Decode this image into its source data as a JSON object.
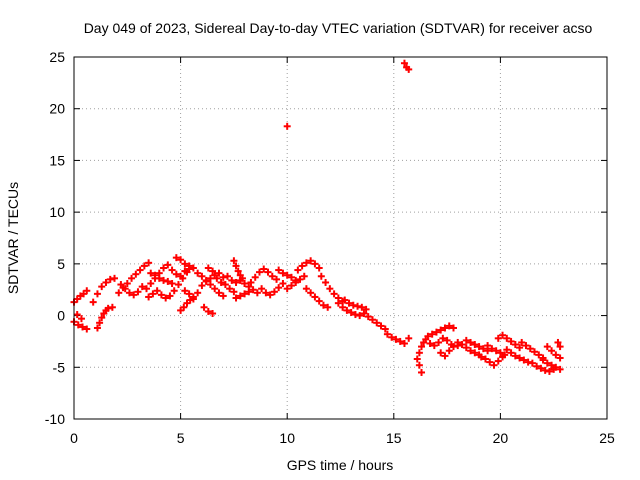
{
  "chart_data": {
    "type": "scatter",
    "title": "Day 049 of 2023, Sidereal Day-to-day VTEC variation (SDTVAR) for receiver acso",
    "xlabel": "GPS time / hours",
    "ylabel": "SDTVAR / TECUs",
    "xlim": [
      0,
      25
    ],
    "ylim": [
      -10,
      25
    ],
    "xticks": [
      0,
      5,
      10,
      15,
      20,
      25
    ],
    "yticks": [
      -10,
      -5,
      0,
      5,
      10,
      15,
      20,
      25
    ],
    "xtick_labels": [
      "0",
      "5",
      "10",
      "15",
      "20",
      "25"
    ],
    "ytick_labels": [
      "-10",
      "-5",
      "0",
      "5",
      "10",
      "15",
      "20",
      "25"
    ],
    "grid": true,
    "marker": "+",
    "color": "#ff0000",
    "series": [
      {
        "name": "SDTVAR",
        "points": [
          [
            0.0,
            1.3
          ],
          [
            0.15,
            1.6
          ],
          [
            0.3,
            1.9
          ],
          [
            0.45,
            2.1
          ],
          [
            0.6,
            2.4
          ],
          [
            0.0,
            -0.6
          ],
          [
            0.2,
            -0.9
          ],
          [
            0.4,
            -1.1
          ],
          [
            0.6,
            -1.3
          ],
          [
            0.15,
            0.1
          ],
          [
            0.35,
            -0.3
          ],
          [
            1.1,
            -1.2
          ],
          [
            1.2,
            -0.7
          ],
          [
            1.3,
            -0.2
          ],
          [
            1.4,
            0.2
          ],
          [
            1.5,
            0.5
          ],
          [
            1.6,
            0.7
          ],
          [
            1.8,
            0.8
          ],
          [
            0.9,
            1.3
          ],
          [
            1.1,
            2.1
          ],
          [
            1.3,
            2.8
          ],
          [
            1.5,
            3.2
          ],
          [
            1.7,
            3.5
          ],
          [
            1.9,
            3.6
          ],
          [
            2.1,
            2.2
          ],
          [
            2.3,
            2.7
          ],
          [
            2.5,
            3.1
          ],
          [
            2.7,
            3.6
          ],
          [
            2.9,
            4.0
          ],
          [
            3.1,
            4.4
          ],
          [
            3.3,
            4.8
          ],
          [
            3.5,
            5.1
          ],
          [
            2.2,
            3.0
          ],
          [
            2.4,
            2.6
          ],
          [
            2.6,
            2.2
          ],
          [
            2.8,
            2.0
          ],
          [
            3.0,
            2.3
          ],
          [
            3.2,
            2.8
          ],
          [
            3.4,
            2.6
          ],
          [
            3.6,
            3.1
          ],
          [
            3.8,
            3.6
          ],
          [
            4.0,
            4.1
          ],
          [
            4.2,
            4.6
          ],
          [
            4.4,
            4.9
          ],
          [
            3.6,
            4.1
          ],
          [
            3.8,
            3.9
          ],
          [
            4.0,
            3.6
          ],
          [
            4.2,
            3.4
          ],
          [
            4.4,
            3.3
          ],
          [
            4.6,
            3.1
          ],
          [
            3.5,
            1.8
          ],
          [
            3.7,
            2.1
          ],
          [
            3.9,
            2.4
          ],
          [
            4.1,
            2.0
          ],
          [
            4.3,
            1.7
          ],
          [
            4.5,
            1.9
          ],
          [
            4.7,
            2.4
          ],
          [
            4.9,
            3.0
          ],
          [
            5.1,
            3.6
          ],
          [
            5.3,
            4.2
          ],
          [
            4.8,
            5.6
          ],
          [
            5.0,
            5.4
          ],
          [
            5.2,
            5.0
          ],
          [
            5.4,
            4.5
          ],
          [
            4.6,
            4.4
          ],
          [
            4.8,
            4.0
          ],
          [
            5.0,
            3.8
          ],
          [
            5.2,
            4.3
          ],
          [
            5.4,
            4.8
          ],
          [
            5.6,
            4.6
          ],
          [
            5.2,
            2.4
          ],
          [
            5.4,
            2.1
          ],
          [
            5.6,
            1.8
          ],
          [
            5.8,
            2.2
          ],
          [
            5.0,
            0.5
          ],
          [
            5.15,
            0.8
          ],
          [
            5.3,
            1.2
          ],
          [
            5.45,
            1.5
          ],
          [
            5.6,
            1.6
          ],
          [
            6.1,
            0.8
          ],
          [
            6.3,
            0.4
          ],
          [
            6.5,
            0.2
          ],
          [
            5.8,
            4.1
          ],
          [
            6.0,
            3.8
          ],
          [
            6.2,
            3.4
          ],
          [
            6.4,
            3.0
          ],
          [
            6.6,
            2.6
          ],
          [
            6.8,
            2.2
          ],
          [
            7.0,
            1.9
          ],
          [
            6.0,
            2.9
          ],
          [
            6.2,
            3.3
          ],
          [
            6.4,
            3.6
          ],
          [
            6.6,
            3.9
          ],
          [
            6.8,
            4.1
          ],
          [
            7.0,
            3.7
          ],
          [
            6.3,
            4.6
          ],
          [
            6.5,
            4.3
          ],
          [
            6.7,
            3.6
          ],
          [
            6.9,
            3.2
          ],
          [
            7.1,
            3.0
          ],
          [
            7.3,
            2.6
          ],
          [
            7.5,
            2.3
          ],
          [
            7.2,
            3.8
          ],
          [
            7.4,
            3.4
          ],
          [
            7.6,
            3.2
          ],
          [
            7.8,
            3.4
          ],
          [
            8.0,
            3.1
          ],
          [
            8.2,
            2.8
          ],
          [
            7.5,
            5.3
          ],
          [
            7.6,
            4.8
          ],
          [
            7.7,
            4.3
          ],
          [
            7.8,
            3.9
          ],
          [
            7.9,
            3.6
          ],
          [
            7.6,
            1.7
          ],
          [
            7.8,
            1.9
          ],
          [
            8.0,
            2.1
          ],
          [
            8.2,
            2.3
          ],
          [
            8.4,
            2.5
          ],
          [
            8.6,
            2.2
          ],
          [
            8.3,
            3.2
          ],
          [
            8.5,
            3.7
          ],
          [
            8.7,
            4.2
          ],
          [
            8.9,
            4.5
          ],
          [
            9.1,
            4.2
          ],
          [
            9.3,
            3.8
          ],
          [
            9.5,
            3.5
          ],
          [
            8.8,
            2.6
          ],
          [
            9.0,
            2.2
          ],
          [
            9.2,
            2.0
          ],
          [
            9.4,
            2.3
          ],
          [
            9.6,
            2.7
          ],
          [
            9.8,
            3.1
          ],
          [
            9.6,
            4.4
          ],
          [
            9.8,
            4.1
          ],
          [
            10.0,
            3.9
          ],
          [
            10.2,
            3.7
          ],
          [
            10.4,
            3.4
          ],
          [
            10.0,
            2.6
          ],
          [
            10.2,
            2.9
          ],
          [
            10.4,
            3.2
          ],
          [
            10.6,
            3.5
          ],
          [
            10.8,
            3.8
          ],
          [
            10.5,
            4.4
          ],
          [
            10.7,
            4.8
          ],
          [
            10.9,
            5.1
          ],
          [
            11.1,
            5.3
          ],
          [
            11.3,
            5.0
          ],
          [
            11.5,
            4.6
          ],
          [
            10.9,
            2.6
          ],
          [
            11.1,
            2.2
          ],
          [
            11.3,
            1.8
          ],
          [
            11.5,
            1.4
          ],
          [
            11.7,
            1.0
          ],
          [
            11.9,
            0.8
          ],
          [
            11.6,
            3.8
          ],
          [
            11.8,
            3.2
          ],
          [
            12.0,
            2.6
          ],
          [
            12.2,
            2.1
          ],
          [
            12.4,
            1.7
          ],
          [
            12.6,
            1.4
          ],
          [
            12.4,
            1.2
          ],
          [
            12.6,
            0.8
          ],
          [
            12.8,
            0.5
          ],
          [
            13.0,
            0.3
          ],
          [
            13.2,
            0.1
          ],
          [
            13.4,
            0.0
          ],
          [
            12.7,
            1.5
          ],
          [
            12.9,
            1.2
          ],
          [
            13.1,
            1.0
          ],
          [
            13.3,
            0.9
          ],
          [
            13.5,
            0.8
          ],
          [
            13.7,
            0.6
          ],
          [
            13.6,
            0.2
          ],
          [
            13.8,
            -0.1
          ],
          [
            14.0,
            -0.4
          ],
          [
            14.2,
            -0.7
          ],
          [
            14.4,
            -1.0
          ],
          [
            14.6,
            -1.3
          ],
          [
            14.7,
            -1.8
          ],
          [
            14.9,
            -2.1
          ],
          [
            15.1,
            -2.3
          ],
          [
            15.3,
            -2.5
          ],
          [
            15.5,
            -2.7
          ],
          [
            15.7,
            -2.2
          ],
          [
            15.5,
            24.4
          ],
          [
            15.6,
            24.0
          ],
          [
            15.7,
            23.8
          ],
          [
            10.0,
            18.3
          ],
          [
            16.1,
            -4.2
          ],
          [
            16.2,
            -4.8
          ],
          [
            16.3,
            -5.5
          ],
          [
            16.2,
            -3.6
          ],
          [
            16.3,
            -3.0
          ],
          [
            16.4,
            -2.6
          ],
          [
            16.5,
            -2.3
          ],
          [
            16.6,
            -2.0
          ],
          [
            16.8,
            -1.8
          ],
          [
            17.0,
            -1.6
          ],
          [
            17.2,
            -1.4
          ],
          [
            17.4,
            -1.2
          ],
          [
            17.6,
            -1.0
          ],
          [
            17.8,
            -1.2
          ],
          [
            16.7,
            -2.7
          ],
          [
            16.9,
            -2.9
          ],
          [
            17.1,
            -2.6
          ],
          [
            17.3,
            -2.2
          ],
          [
            17.5,
            -2.4
          ],
          [
            17.7,
            -2.8
          ],
          [
            17.2,
            -3.6
          ],
          [
            17.4,
            -3.9
          ],
          [
            17.6,
            -3.4
          ],
          [
            17.8,
            -3.0
          ],
          [
            18.0,
            -2.9
          ],
          [
            18.0,
            -2.6
          ],
          [
            18.2,
            -2.8
          ],
          [
            18.4,
            -3.1
          ],
          [
            18.6,
            -3.4
          ],
          [
            18.8,
            -3.6
          ],
          [
            19.0,
            -3.8
          ],
          [
            18.4,
            -2.4
          ],
          [
            18.6,
            -2.6
          ],
          [
            18.8,
            -2.8
          ],
          [
            19.0,
            -3.0
          ],
          [
            19.2,
            -3.2
          ],
          [
            19.4,
            -3.4
          ],
          [
            19.1,
            -4.0
          ],
          [
            19.3,
            -4.2
          ],
          [
            19.5,
            -4.5
          ],
          [
            19.7,
            -4.8
          ],
          [
            19.9,
            -4.4
          ],
          [
            20.1,
            -4.0
          ],
          [
            19.4,
            -2.9
          ],
          [
            19.6,
            -3.2
          ],
          [
            19.8,
            -3.4
          ],
          [
            20.0,
            -3.6
          ],
          [
            20.2,
            -3.8
          ],
          [
            19.9,
            -2.2
          ],
          [
            20.1,
            -1.9
          ],
          [
            20.3,
            -2.2
          ],
          [
            20.5,
            -2.5
          ],
          [
            20.7,
            -2.8
          ],
          [
            20.9,
            -3.1
          ],
          [
            20.3,
            -3.3
          ],
          [
            20.5,
            -3.6
          ],
          [
            20.7,
            -3.9
          ],
          [
            20.9,
            -4.1
          ],
          [
            21.1,
            -4.3
          ],
          [
            21.3,
            -4.5
          ],
          [
            21.0,
            -2.6
          ],
          [
            21.2,
            -2.9
          ],
          [
            21.4,
            -3.2
          ],
          [
            21.6,
            -3.5
          ],
          [
            21.8,
            -3.8
          ],
          [
            22.0,
            -4.1
          ],
          [
            21.5,
            -4.6
          ],
          [
            21.7,
            -4.9
          ],
          [
            21.9,
            -5.1
          ],
          [
            22.1,
            -5.3
          ],
          [
            22.3,
            -5.4
          ],
          [
            22.5,
            -5.2
          ],
          [
            22.0,
            -4.3
          ],
          [
            22.2,
            -4.6
          ],
          [
            22.4,
            -4.8
          ],
          [
            22.6,
            -5.0
          ],
          [
            22.8,
            -5.2
          ],
          [
            22.2,
            -3.0
          ],
          [
            22.4,
            -3.4
          ],
          [
            22.6,
            -3.8
          ],
          [
            22.8,
            -4.1
          ],
          [
            22.8,
            -3.0
          ],
          [
            22.7,
            -2.6
          ]
        ]
      }
    ]
  }
}
